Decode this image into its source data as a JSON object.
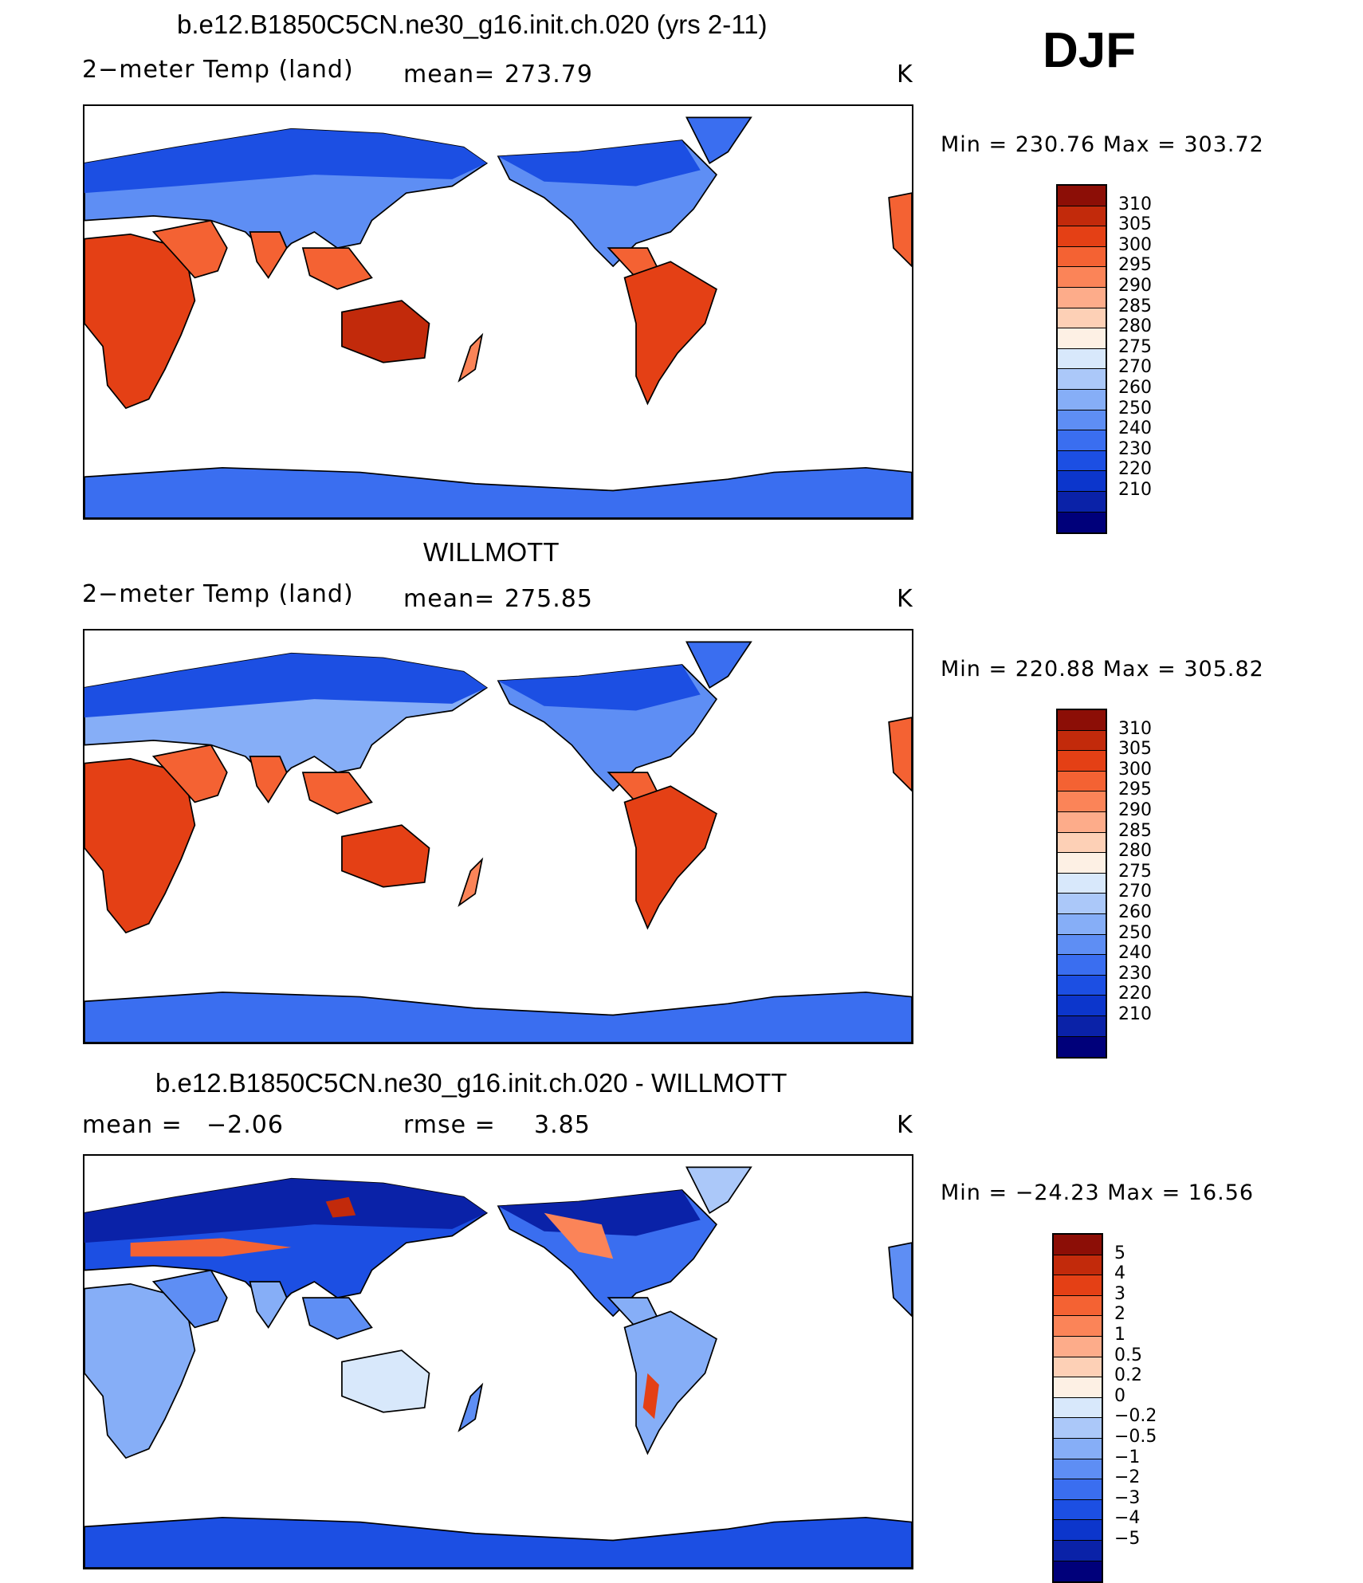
{
  "season": "DJF",
  "units": "K",
  "colors": {
    "ocean": "#ffffff",
    "coast": "#000000",
    "temp_scale": [
      "#00007a",
      "#0a22a8",
      "#0c36cc",
      "#1c4fe3",
      "#3a6ef0",
      "#5e8ef4",
      "#86aef7",
      "#abc8f9",
      "#d8e8fb",
      "#fdf0e4",
      "#fdd0b6",
      "#fdac8a",
      "#fb8458",
      "#f46233",
      "#e44015",
      "#c22a0b",
      "#8c0e06"
    ],
    "diff_scale": [
      "#00007a",
      "#0a22a8",
      "#0c36cc",
      "#1c4fe3",
      "#3a6ef0",
      "#5e8ef4",
      "#86aef7",
      "#abc8f9",
      "#d8e8fb",
      "#fdf0e4",
      "#fdd0b6",
      "#fdac8a",
      "#fb8458",
      "#f46233",
      "#e44015",
      "#c22a0b",
      "#8c0e06"
    ]
  },
  "panels": [
    {
      "title": "b.e12.B1850C5CN.ne30_g16.init.ch.020 (yrs 2-11)",
      "left_label": "2−meter Temp (land)",
      "stat_label": "mean=",
      "stat_value": "273.79",
      "stat2_label": "",
      "stat2_value": "",
      "units": "K",
      "min_max": "Min  =  230.76  Max  =  303.72",
      "colorbar": [
        "310",
        "305",
        "300",
        "295",
        "290",
        "285",
        "280",
        "275",
        "270",
        "260",
        "250",
        "240",
        "230",
        "220",
        "210"
      ],
      "icon": "world-map-icon"
    },
    {
      "title": "WILLMOTT",
      "left_label": "2−meter Temp (land)",
      "stat_label": "mean=",
      "stat_value": "275.85",
      "stat2_label": "",
      "stat2_value": "",
      "units": "K",
      "min_max": "Min  =  220.88  Max  =  305.82",
      "colorbar": [
        "310",
        "305",
        "300",
        "295",
        "290",
        "285",
        "280",
        "275",
        "270",
        "260",
        "250",
        "240",
        "230",
        "220",
        "210"
      ],
      "icon": "world-map-icon"
    },
    {
      "title": "b.e12.B1850C5CN.ne30_g16.init.ch.020 - WILLMOTT",
      "left_label": "mean  =",
      "stat_label": "rmse  =",
      "stat_value": "3.85",
      "stat2_label": "",
      "stat2_value": "−2.06",
      "units": "K",
      "min_max": "Min  =  −24.23  Max  =    16.56",
      "colorbar": [
        "5",
        "4",
        "3",
        "2",
        "1",
        "0.5",
        "0.2",
        "0",
        "−0.2",
        "−0.5",
        "−1",
        "−2",
        "−3",
        "−4",
        "−5"
      ],
      "icon": "world-map-icon"
    }
  ]
}
